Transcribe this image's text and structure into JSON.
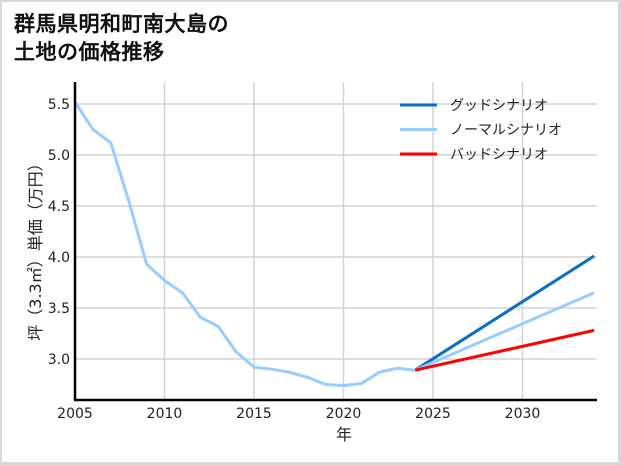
{
  "title": {
    "line1": "群馬県明和町南大島の",
    "line2": "土地の価格推移"
  },
  "colors": {
    "good": "#0a6fc2",
    "normal": "#99ccff",
    "bad": "#ff0000",
    "grid": "#d3d3d3",
    "axis": "#000000",
    "border": "#d9d9d9"
  },
  "legend": [
    {
      "label": "グッドシナリオ",
      "color": "#0a6fc2"
    },
    {
      "label": "ノーマルシナリオ",
      "color": "#99ccff"
    },
    {
      "label": "バッドシナリオ",
      "color": "#ff0000"
    }
  ],
  "xaxis": {
    "label": "年",
    "ticks": [
      "2005",
      "2010",
      "2015",
      "2020",
      "2025",
      "2030"
    ]
  },
  "yaxis": {
    "label": "坪（3.3㎡）単価（万円）",
    "ticks": [
      "3.0",
      "3.5",
      "4.0",
      "4.5",
      "5.0",
      "5.5"
    ]
  },
  "chart_data": {
    "type": "line",
    "title": "群馬県明和町南大島の土地の価格推移",
    "xlabel": "年",
    "ylabel": "坪（3.3㎡）単価（万円）",
    "xlim": [
      2005,
      2034
    ],
    "ylim": [
      2.6,
      5.8
    ],
    "grid": true,
    "legend_position": "upper right",
    "series": [
      {
        "name": "ノーマルシナリオ (実績)",
        "color": "#99ccff",
        "x": [
          2005,
          2006,
          2007,
          2008,
          2009,
          2010,
          2011,
          2012,
          2013,
          2014,
          2015,
          2016,
          2017,
          2018,
          2019,
          2020,
          2021,
          2022,
          2023,
          2024
        ],
        "values": [
          5.52,
          5.25,
          5.12,
          4.55,
          3.93,
          3.77,
          3.65,
          3.41,
          3.32,
          3.07,
          2.92,
          2.9,
          2.87,
          2.82,
          2.75,
          2.74,
          2.76,
          2.87,
          2.91,
          2.89
        ]
      },
      {
        "name": "グッドシナリオ",
        "color": "#0a6fc2",
        "x": [
          2024,
          2034
        ],
        "values": [
          2.89,
          4.01
        ]
      },
      {
        "name": "ノーマルシナリオ",
        "color": "#99ccff",
        "x": [
          2024,
          2034
        ],
        "values": [
          2.89,
          3.65
        ]
      },
      {
        "name": "バッドシナリオ",
        "color": "#ff0000",
        "x": [
          2024,
          2034
        ],
        "values": [
          2.89,
          3.28
        ]
      }
    ]
  }
}
